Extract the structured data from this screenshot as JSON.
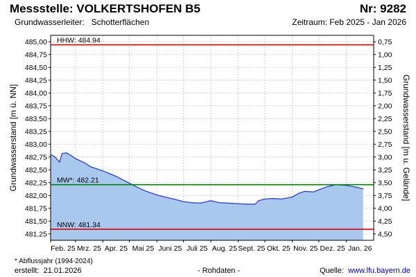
{
  "header": {
    "title": "Messstelle: VOLKERTSHOFEN B5",
    "number": "Nr: 9282",
    "aquifer_label": "Grundwasserleiter:",
    "aquifer_value": "Schotterflächen",
    "period": "Zeitraum: Feb 2025 - Jan 2026"
  },
  "footer": {
    "footnote": "* Abflussjahr (1994-2024)",
    "created_label": "erstellt:",
    "created_date": "21.01.2026",
    "raw_data": "- Rohdaten -",
    "source_label": "Quelle:",
    "source_url": "www.lfu.bayern.de"
  },
  "colors": {
    "area_fill": "#a9c8ee",
    "line": "#2a3fd8",
    "hhw_line": "#e00000",
    "mw_line": "#008000",
    "nnw_line": "#e00000",
    "grid": "#cfcfcf"
  },
  "chart_data": {
    "type": "area",
    "xlabel": "",
    "ylabel_left": "Grundwasserstand [m ü. NN]",
    "ylabel_right": "Grundwasserstand [m u. Gelände]",
    "ylim": [
      481.125,
      485.125
    ],
    "left_ticks": [
      "485,00",
      "484,75",
      "484,50",
      "484,25",
      "484,00",
      "483,75",
      "483,50",
      "483,25",
      "483,00",
      "482,75",
      "482,50",
      "482,25",
      "482,00",
      "481,75",
      "481,50",
      "481,25"
    ],
    "left_tick_values": [
      485.0,
      484.75,
      484.5,
      484.25,
      484.0,
      483.75,
      483.5,
      483.25,
      483.0,
      482.75,
      482.5,
      482.25,
      482.0,
      481.75,
      481.5,
      481.25
    ],
    "right_ticks": [
      "0,75",
      "1,00",
      "1,25",
      "1,50",
      "1,75",
      "2,00",
      "2,25",
      "2,50",
      "2,75",
      "3,00",
      "3,25",
      "3,50",
      "3,75",
      "4,00",
      "4,25",
      "4,50"
    ],
    "months": [
      "Feb. 25",
      "Mrz. 25",
      "Apr. 25",
      "Mai 25",
      "Juni 25",
      "Juli 25",
      "Aug. 25",
      "Sept. 25",
      "Okt. 25",
      "Nov. 25",
      "Dez. 25",
      "Jan. 26"
    ],
    "x": [
      "2025-02-01",
      "2025-02-06",
      "2025-02-11",
      "2025-02-14",
      "2025-02-19",
      "2025-02-25",
      "2025-03-01",
      "2025-03-06",
      "2025-03-12",
      "2025-03-18",
      "2025-03-25",
      "2025-04-01",
      "2025-04-08",
      "2025-04-15",
      "2025-04-22",
      "2025-05-01",
      "2025-05-10",
      "2025-05-20",
      "2025-06-01",
      "2025-06-10",
      "2025-06-20",
      "2025-07-01",
      "2025-07-10",
      "2025-07-20",
      "2025-07-25",
      "2025-08-01",
      "2025-08-10",
      "2025-08-20",
      "2025-09-01",
      "2025-09-10",
      "2025-09-20",
      "2025-09-24",
      "2025-10-01",
      "2025-10-10",
      "2025-10-20",
      "2025-11-01",
      "2025-11-08",
      "2025-11-15",
      "2025-11-25",
      "2025-12-01",
      "2025-12-10",
      "2025-12-20",
      "2025-12-31",
      "2026-01-10",
      "2026-01-20"
    ],
    "values": [
      482.8,
      482.75,
      482.65,
      482.82,
      482.83,
      482.77,
      482.72,
      482.68,
      482.63,
      482.56,
      482.52,
      482.48,
      482.43,
      482.38,
      482.32,
      482.24,
      482.16,
      482.08,
      482.01,
      481.97,
      481.93,
      481.88,
      481.86,
      481.85,
      481.87,
      481.9,
      481.86,
      481.85,
      481.84,
      481.83,
      481.83,
      481.9,
      481.93,
      481.94,
      481.93,
      481.97,
      482.04,
      482.08,
      482.07,
      482.11,
      482.17,
      482.21,
      482.2,
      482.17,
      482.13
    ],
    "reference_lines": [
      {
        "label": "HHW: 484.94",
        "value": 484.94
      },
      {
        "label": "MW*: 482.21",
        "value": 482.21
      },
      {
        "label": "NNW: 481.34",
        "value": 481.34
      }
    ],
    "grid": true
  }
}
